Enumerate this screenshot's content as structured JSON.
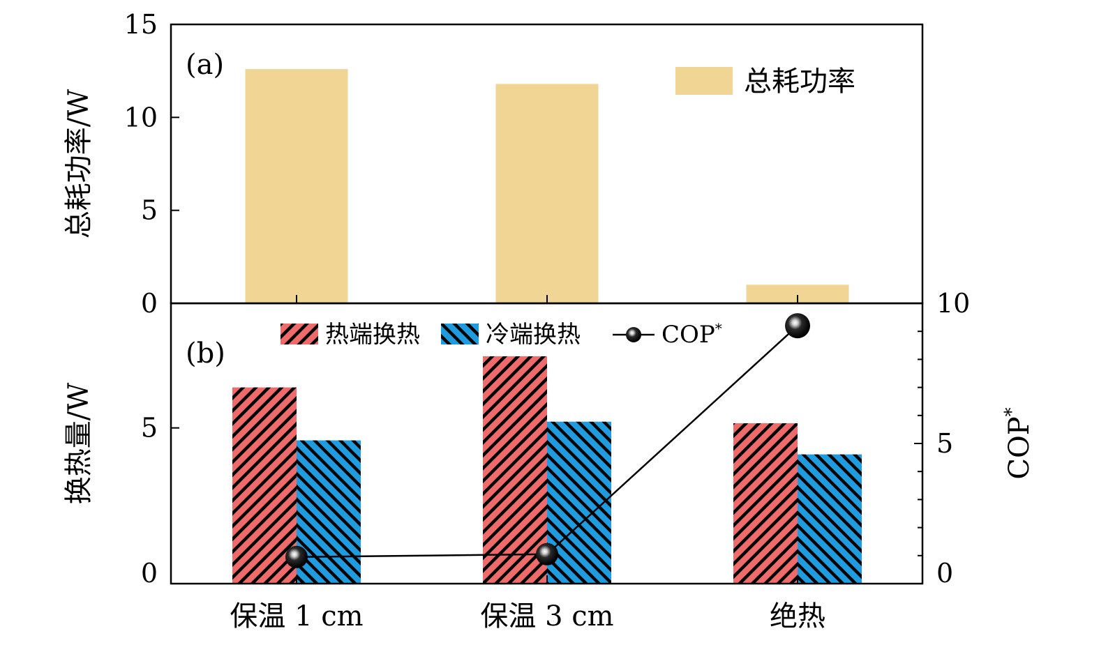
{
  "chart_data": [
    {
      "panel": "(a)",
      "type": "bar",
      "categories": [
        "保温 1 cm",
        "保温 3 cm",
        "绝热"
      ],
      "ylabel": "总耗功率/W",
      "ylim": [
        0,
        15
      ],
      "yticks": [
        "0",
        "5",
        "10",
        "15"
      ],
      "series": [
        {
          "name": "总耗功率",
          "values": [
            12.6,
            11.8,
            1.0
          ],
          "color": "#f0d595"
        }
      ],
      "legend_position": "top-right"
    },
    {
      "panel": "(b)",
      "type": "bar",
      "categories": [
        "保温 1 cm",
        "保温 3 cm",
        "绝热"
      ],
      "ylabel": "换热量/W",
      "ylim": [
        0,
        9
      ],
      "yticks": [
        "0",
        "5"
      ],
      "y2label": "COP*",
      "y2lim": [
        0,
        10
      ],
      "y2ticks": [
        "0",
        "5",
        "10"
      ],
      "series": [
        {
          "name": "热端换热",
          "values": [
            6.3,
            7.3,
            5.15
          ],
          "color": "#ef6a6a",
          "pattern": "hatch"
        },
        {
          "name": "冷端换热",
          "values": [
            4.6,
            5.2,
            4.15
          ],
          "color": "#1f9be0",
          "pattern": "hatch"
        },
        {
          "name": "COP*",
          "type": "line",
          "axis": "right",
          "values": [
            0.95,
            1.05,
            9.2
          ],
          "color": "#000000"
        }
      ],
      "legend_position": "top"
    }
  ]
}
